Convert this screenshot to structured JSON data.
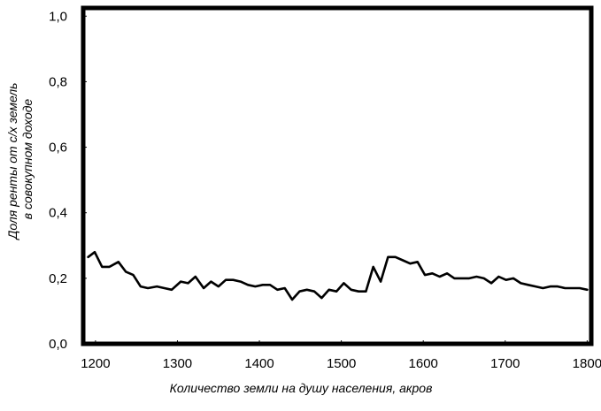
{
  "chart_data": {
    "type": "line",
    "xlabel": "Количество земли на душу населения, акров",
    "ylabel_lines": [
      "Доля ренты от с/х земель",
      "в совокупном доходе"
    ],
    "xlim": [
      1185,
      1805
    ],
    "ylim": [
      0.0,
      1.025
    ],
    "x_ticks": [
      {
        "value": 1200,
        "label": "1200"
      },
      {
        "value": 1300,
        "label": "1300"
      },
      {
        "value": 1400,
        "label": "1400"
      },
      {
        "value": 1500,
        "label": "1500"
      },
      {
        "value": 1600,
        "label": "1600"
      },
      {
        "value": 1700,
        "label": "1700"
      },
      {
        "value": 1800,
        "label": "1800"
      }
    ],
    "y_ticks": [
      {
        "value": 0.0,
        "label": "0,0"
      },
      {
        "value": 0.2,
        "label": "0,2"
      },
      {
        "value": 0.4,
        "label": "0,4"
      },
      {
        "value": 0.6,
        "label": "0,6"
      },
      {
        "value": 0.8,
        "label": "0,8"
      },
      {
        "value": 1.0,
        "label": "1,0"
      }
    ],
    "grid": false,
    "line_color": "#000000",
    "series": [
      {
        "x": [
          1191,
          1199,
          1208,
          1217,
          1228,
          1237,
          1246,
          1255,
          1264,
          1275,
          1284,
          1293,
          1304,
          1313,
          1322,
          1332,
          1341,
          1350,
          1359,
          1368,
          1377,
          1386,
          1395,
          1404,
          1413,
          1422,
          1431,
          1440,
          1449,
          1458,
          1467,
          1476,
          1485,
          1494,
          1503,
          1512,
          1521,
          1530,
          1539,
          1548,
          1557,
          1566,
          1575,
          1584,
          1593,
          1602,
          1611,
          1620,
          1629,
          1638,
          1647,
          1656,
          1665,
          1674,
          1683,
          1692,
          1701,
          1710,
          1719,
          1728,
          1737,
          1746,
          1755,
          1764,
          1773,
          1782,
          1791,
          1800
        ],
        "y": [
          0.265,
          0.28,
          0.235,
          0.235,
          0.25,
          0.22,
          0.21,
          0.175,
          0.17,
          0.175,
          0.17,
          0.165,
          0.19,
          0.185,
          0.205,
          0.17,
          0.19,
          0.175,
          0.195,
          0.195,
          0.19,
          0.18,
          0.175,
          0.18,
          0.18,
          0.165,
          0.17,
          0.135,
          0.16,
          0.165,
          0.16,
          0.14,
          0.165,
          0.16,
          0.185,
          0.165,
          0.16,
          0.16,
          0.235,
          0.19,
          0.265,
          0.265,
          0.255,
          0.245,
          0.25,
          0.21,
          0.215,
          0.205,
          0.215,
          0.2,
          0.2,
          0.2,
          0.205,
          0.2,
          0.185,
          0.205,
          0.195,
          0.2,
          0.185,
          0.18,
          0.175,
          0.17,
          0.175,
          0.175,
          0.17,
          0.17,
          0.17,
          0.165
        ]
      }
    ]
  }
}
